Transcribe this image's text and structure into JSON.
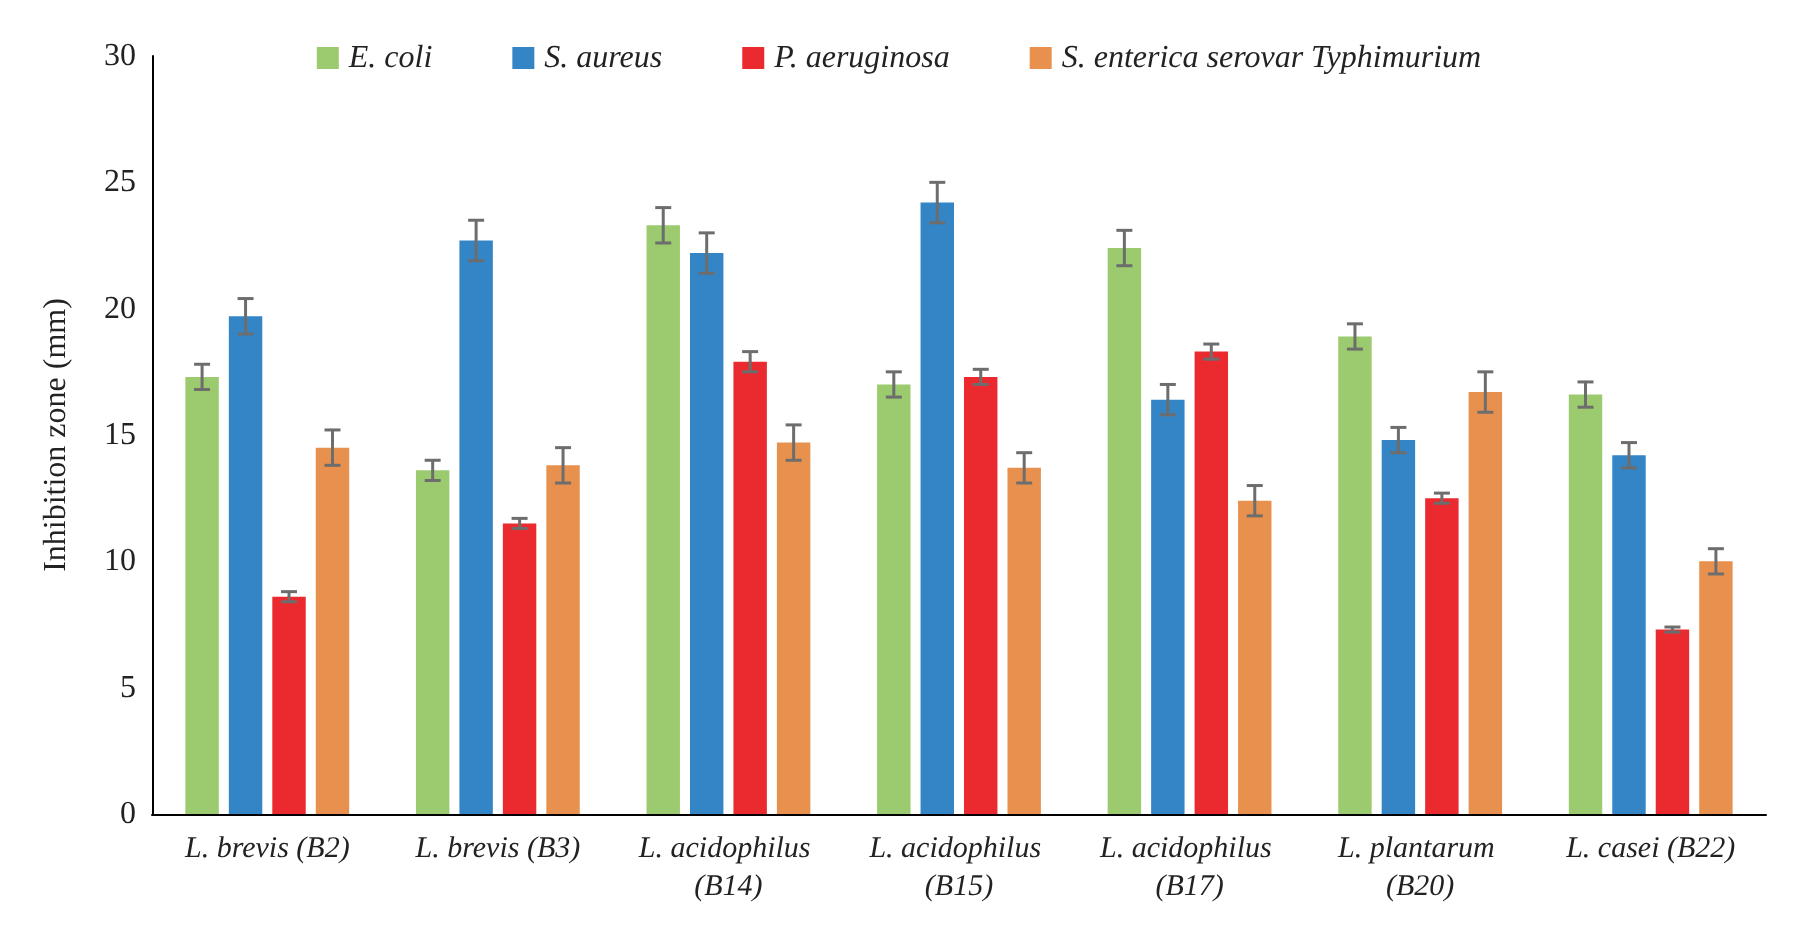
{
  "chart_data": {
    "type": "bar",
    "ylabel": "Inhibition zone (mm)",
    "categories": [
      "L. brevis (B2)",
      "L. brevis (B3)",
      "L. acidophilus (B14)",
      "L. acidophilus (B15)",
      "L. acidophilus (B17)",
      "L. plantarum (B20)",
      "L. casei (B22)"
    ],
    "series": [
      {
        "name": "E. coli",
        "color": "#9bcb6e",
        "values": [
          17.3,
          13.6,
          23.3,
          17.0,
          22.4,
          18.9,
          16.6
        ],
        "errors": [
          0.5,
          0.4,
          0.7,
          0.5,
          0.7,
          0.5,
          0.5
        ]
      },
      {
        "name": "S. aureus",
        "color": "#3385c6",
        "values": [
          19.7,
          22.7,
          22.2,
          24.2,
          16.4,
          14.8,
          14.2
        ],
        "errors": [
          0.7,
          0.8,
          0.8,
          0.8,
          0.6,
          0.5,
          0.5
        ]
      },
      {
        "name": "P. aeruginosa",
        "color": "#ea2a2e",
        "values": [
          8.6,
          11.5,
          17.9,
          17.3,
          18.3,
          12.5,
          7.3
        ],
        "errors": [
          0.2,
          0.2,
          0.4,
          0.3,
          0.3,
          0.2,
          0.1
        ]
      },
      {
        "name": "S. enterica serovar Typhimurium",
        "color": "#e8914f",
        "values": [
          14.5,
          13.8,
          14.7,
          13.7,
          12.4,
          16.7,
          10.0
        ],
        "errors": [
          0.7,
          0.7,
          0.7,
          0.6,
          0.6,
          0.8,
          0.5
        ]
      }
    ],
    "ylim": [
      0,
      30
    ],
    "yticks": [
      0,
      5,
      10,
      15,
      20,
      25,
      30
    ],
    "grid": false,
    "legend": "top"
  }
}
